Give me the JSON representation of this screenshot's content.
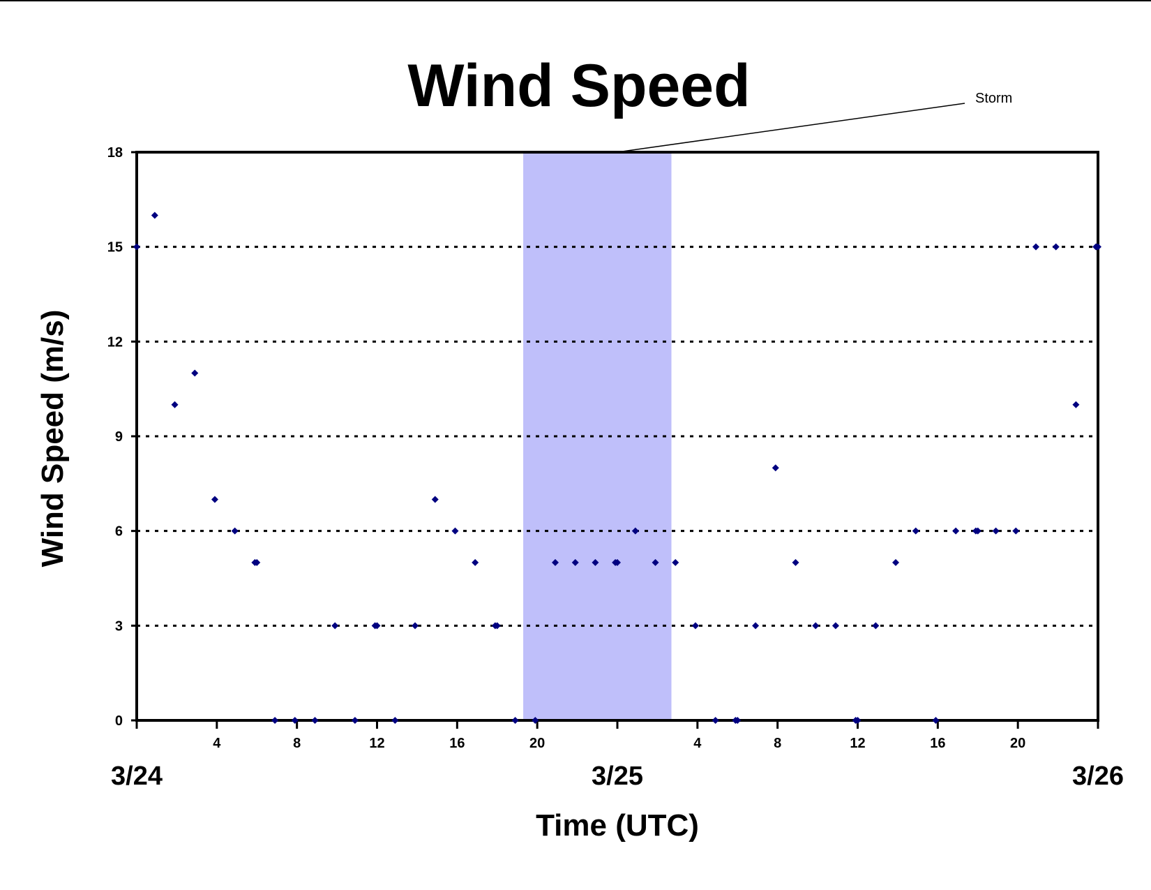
{
  "chart_data": {
    "type": "scatter",
    "title": "Wind Speed",
    "xlabel": "Time (UTC)",
    "ylabel": "Wind Speed (m/s)",
    "ylim": [
      0,
      18
    ],
    "yticks": [
      "0",
      "3",
      "6",
      "9",
      "12",
      "15",
      "18"
    ],
    "xlim_hours": [
      0,
      48
    ],
    "x_unit": "hours from 3/24 00 UTC",
    "xtick_labels": [
      {
        "hour": 4,
        "label": "4"
      },
      {
        "hour": 8,
        "label": "8"
      },
      {
        "hour": 12,
        "label": "12"
      },
      {
        "hour": 16,
        "label": "16"
      },
      {
        "hour": 20,
        "label": "20"
      },
      {
        "hour": 28,
        "label": "4"
      },
      {
        "hour": 32,
        "label": "8"
      },
      {
        "hour": 36,
        "label": "12"
      },
      {
        "hour": 40,
        "label": "16"
      },
      {
        "hour": 44,
        "label": "20"
      }
    ],
    "date_labels": [
      {
        "hour": 0,
        "label": "3/24"
      },
      {
        "hour": 24,
        "label": "3/25"
      },
      {
        "hour": 48,
        "label": "3/26"
      }
    ],
    "grid": "horizontal dashed",
    "storm_band": {
      "start_hour": 19.3,
      "end_hour": 26.7,
      "color": "#bfbffa"
    },
    "annotation": {
      "text": "Storm"
    },
    "marker_color": "#000080",
    "series": [
      {
        "points": [
          [
            0,
            15
          ],
          [
            0.9,
            16
          ],
          [
            1.9,
            10
          ],
          [
            2.9,
            11
          ],
          [
            3.9,
            7
          ],
          [
            4.9,
            6
          ],
          [
            5.9,
            5
          ],
          [
            6.0,
            5
          ],
          [
            6.9,
            0
          ],
          [
            7.9,
            0
          ],
          [
            8.9,
            0
          ],
          [
            9.9,
            3
          ],
          [
            10.9,
            0
          ],
          [
            11.9,
            3
          ],
          [
            12.0,
            3
          ],
          [
            12.9,
            0
          ],
          [
            13.9,
            3
          ],
          [
            14.9,
            7
          ],
          [
            15.9,
            6
          ],
          [
            16.9,
            5
          ],
          [
            17.9,
            3
          ],
          [
            18.0,
            3
          ],
          [
            18.9,
            0
          ],
          [
            19.9,
            0
          ],
          [
            20.9,
            5
          ],
          [
            21.9,
            5
          ],
          [
            22.9,
            5
          ],
          [
            23.9,
            5
          ],
          [
            24.0,
            5
          ],
          [
            24.9,
            6
          ],
          [
            25.9,
            5
          ],
          [
            26.9,
            5
          ],
          [
            27.9,
            3
          ],
          [
            28.9,
            0
          ],
          [
            29.9,
            0
          ],
          [
            30.0,
            0
          ],
          [
            30.9,
            3
          ],
          [
            31.9,
            8
          ],
          [
            32.9,
            5
          ],
          [
            33.9,
            3
          ],
          [
            34.9,
            3
          ],
          [
            35.9,
            0
          ],
          [
            36.0,
            0
          ],
          [
            36.9,
            3
          ],
          [
            37.9,
            5
          ],
          [
            38.9,
            6
          ],
          [
            39.9,
            0
          ],
          [
            40.9,
            6
          ],
          [
            41.9,
            6
          ],
          [
            42.0,
            6
          ],
          [
            42.9,
            6
          ],
          [
            43.9,
            6
          ],
          [
            44.9,
            15
          ],
          [
            45.9,
            15
          ],
          [
            46.9,
            10
          ],
          [
            47.9,
            15
          ],
          [
            48.0,
            15
          ]
        ]
      }
    ]
  }
}
